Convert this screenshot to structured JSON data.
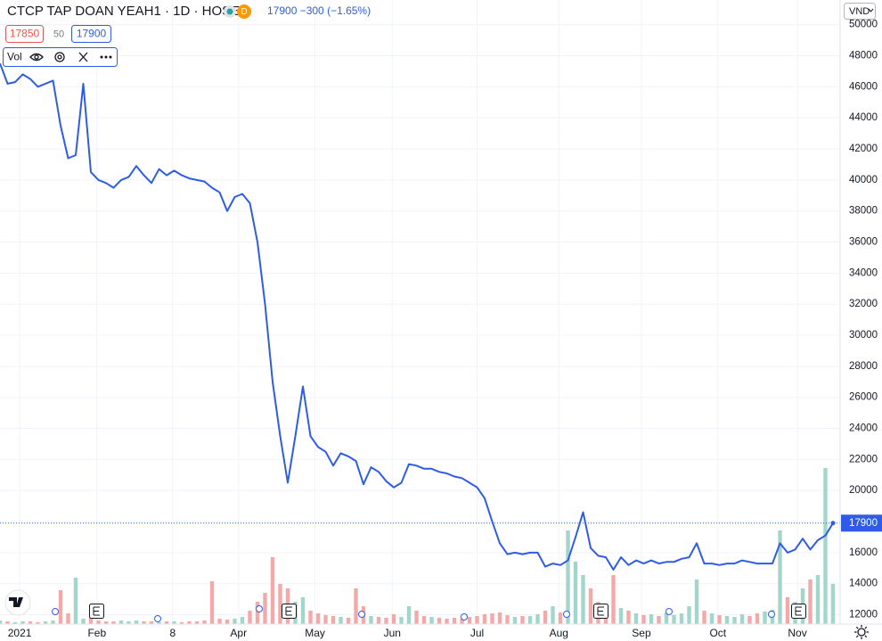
{
  "chart_data": {
    "type": "line",
    "title": "CTCP TAP DOAN YEAH1 · 1D · HOSE",
    "badge": "D",
    "price_summary": "17900 −300 (−1.65%)",
    "bid": "17850",
    "spread": "50",
    "ask": "17900",
    "indicator": "Vol",
    "currency": "VND",
    "last_price": 17900,
    "ylim": [
      11400,
      50900
    ],
    "yticks": [
      12000,
      14000,
      16000,
      18000,
      20000,
      22000,
      24000,
      26000,
      28000,
      30000,
      32000,
      34000,
      36000,
      38000,
      40000,
      42000,
      44000,
      46000,
      48000,
      50000
    ],
    "xticks": [
      {
        "value": 2.6,
        "label": "2021"
      },
      {
        "value": 12.8,
        "label": "Feb"
      },
      {
        "value": 22.8,
        "label": "8"
      },
      {
        "value": 31.5,
        "label": "Apr"
      },
      {
        "value": 41.6,
        "label": "May"
      },
      {
        "value": 51.8,
        "label": "Jun"
      },
      {
        "value": 63,
        "label": "Jul"
      },
      {
        "value": 73.8,
        "label": "Aug"
      },
      {
        "value": 84.7,
        "label": "Sep"
      },
      {
        "value": 94.8,
        "label": "Oct"
      },
      {
        "value": 105.3,
        "label": "Nov"
      }
    ],
    "grid": true,
    "up_color": "#a3d6cb",
    "down_color": "#f4a9a9",
    "series": [
      {
        "name": "Price",
        "color": "#2e5ce6",
        "values": [
          47500,
          46200,
          46300,
          46800,
          46500,
          46000,
          46200,
          46400,
          43500,
          41400,
          41600,
          46200,
          40500,
          40000,
          39800,
          39500,
          40000,
          40200,
          40900,
          40300,
          39800,
          40700,
          40300,
          40600,
          40300,
          40100,
          40000,
          39900,
          39500,
          39200,
          38000,
          38900,
          39100,
          38500,
          36000,
          32000,
          27000,
          23500,
          20500,
          23500,
          26700,
          23500,
          22800,
          22500,
          21600,
          22400,
          22200,
          21900,
          20400,
          21500,
          21200,
          20600,
          20200,
          20500,
          21700,
          21600,
          21400,
          21400,
          21200,
          21100,
          20900,
          20800,
          20500,
          20200,
          19500,
          18000,
          16600,
          15900,
          16000,
          15900,
          16000,
          16000,
          15100,
          15300,
          15200,
          15500,
          17000,
          18600,
          16300,
          15800,
          15700,
          14900,
          15700,
          15200,
          15500,
          15300,
          15500,
          15300,
          15400,
          15400,
          15600,
          15700,
          16600,
          15300,
          15300,
          15200,
          15300,
          15300,
          15500,
          15400,
          15300,
          15300,
          15300,
          16600,
          16000,
          16200,
          16900,
          16200,
          16800,
          17100,
          17900
        ]
      },
      {
        "name": "Vol",
        "values": [
          40,
          30,
          20,
          30,
          30,
          20,
          30,
          40,
          380,
          120,
          520,
          60,
          80,
          40,
          30,
          30,
          40,
          30,
          40,
          30,
          30,
          20,
          30,
          30,
          20,
          30,
          30,
          40,
          480,
          60,
          50,
          60,
          80,
          150,
          250,
          350,
          750,
          450,
          400,
          250,
          300,
          150,
          120,
          100,
          90,
          80,
          70,
          400,
          200,
          90,
          80,
          70,
          110,
          80,
          200,
          150,
          90,
          80,
          70,
          60,
          70,
          60,
          80,
          90,
          110,
          120,
          130,
          100,
          80,
          90,
          90,
          110,
          150,
          200,
          130,
          1050,
          700,
          550,
          400,
          250,
          200,
          550,
          180,
          150,
          120,
          100,
          110,
          90,
          130,
          100,
          120,
          200,
          500,
          150,
          120,
          100,
          90,
          80,
          110,
          90,
          120,
          140,
          160,
          1050,
          300,
          250,
          400,
          500,
          550,
          1750,
          450
        ]
      }
    ]
  }
}
